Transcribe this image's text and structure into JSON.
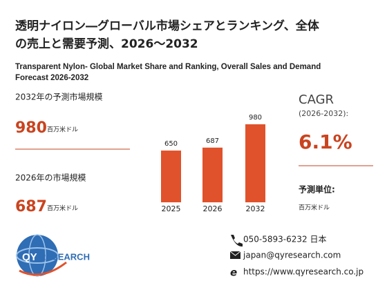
{
  "header": {
    "title_line1": "透明ナイロン―グローバル市場シェアとランキング、全体",
    "title_line2": "の売上と需要予測、2026～2032",
    "subtitle_line1": "Transparent Nylon- Global Market Share and Ranking, Overall Sales and Demand",
    "subtitle_line2": "Forecast 2026-2032"
  },
  "stats": {
    "forecast_label": "2032年の予測市場規模",
    "forecast_value": "980",
    "forecast_unit": "百万米ドル",
    "current_label": "2026年の市場規模",
    "current_value": "687",
    "current_unit": "百万米ドル"
  },
  "cagr": {
    "label": "CAGR",
    "period": "(2026-2032):",
    "value": "6.1%",
    "unit_label": "予測単位:",
    "unit": "百万米ドル"
  },
  "chart_data": {
    "type": "bar",
    "categories": [
      "2025",
      "2026",
      "2032"
    ],
    "values": [
      650,
      687,
      980
    ],
    "color": "#e0522b"
  },
  "logo": {
    "prefix": "QY",
    "suffix": "RESEARCH"
  },
  "contact": {
    "phone": "050-5893-6232 日本",
    "email": "japan@qyresearch.com",
    "web": "https://www.qyresearch.co.jp"
  }
}
